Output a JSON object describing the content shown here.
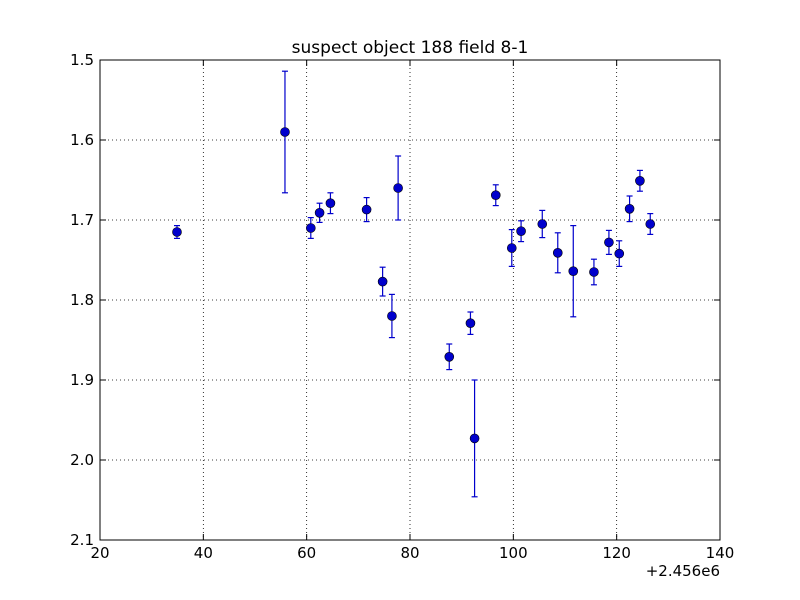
{
  "chart_data": {
    "type": "scatter",
    "title": "suspect object 188 field 8-1",
    "xlabel": "",
    "ylabel": "",
    "xlim": [
      20,
      140
    ],
    "ylim": [
      2.1,
      1.5
    ],
    "y_inverted": true,
    "x_offset_label": "+2.456e6",
    "x_ticks": [
      20,
      40,
      60,
      80,
      100,
      120,
      140
    ],
    "x_tick_labels": [
      "20",
      "40",
      "60",
      "80",
      "100",
      "120",
      "140"
    ],
    "y_ticks": [
      1.5,
      1.6,
      1.7,
      1.8,
      1.9,
      2.0,
      2.1
    ],
    "y_tick_labels": [
      "1.5",
      "1.6",
      "1.7",
      "1.8",
      "1.9",
      "2.0",
      "2.1"
    ],
    "grid": true,
    "marker_color": "#0000cc",
    "errorbar_color": "#0000cc",
    "points": [
      {
        "x": 34.9,
        "y": 1.715,
        "yerr": 0.008
      },
      {
        "x": 55.8,
        "y": 1.59,
        "yerr": 0.076
      },
      {
        "x": 60.8,
        "y": 1.71,
        "yerr": 0.013
      },
      {
        "x": 62.5,
        "y": 1.691,
        "yerr": 0.012
      },
      {
        "x": 64.6,
        "y": 1.679,
        "yerr": 0.013
      },
      {
        "x": 71.6,
        "y": 1.687,
        "yerr": 0.015
      },
      {
        "x": 74.7,
        "y": 1.777,
        "yerr": 0.018
      },
      {
        "x": 76.5,
        "y": 1.82,
        "yerr": 0.027
      },
      {
        "x": 77.7,
        "y": 1.66,
        "yerr": 0.04
      },
      {
        "x": 87.6,
        "y": 1.871,
        "yerr": 0.016
      },
      {
        "x": 91.7,
        "y": 1.829,
        "yerr": 0.014
      },
      {
        "x": 92.5,
        "y": 1.973,
        "yerr": 0.073
      },
      {
        "x": 96.6,
        "y": 1.669,
        "yerr": 0.013
      },
      {
        "x": 99.7,
        "y": 1.735,
        "yerr": 0.023
      },
      {
        "x": 101.5,
        "y": 1.714,
        "yerr": 0.013
      },
      {
        "x": 105.6,
        "y": 1.705,
        "yerr": 0.017
      },
      {
        "x": 108.6,
        "y": 1.741,
        "yerr": 0.025
      },
      {
        "x": 111.6,
        "y": 1.764,
        "yerr": 0.057
      },
      {
        "x": 115.6,
        "y": 1.765,
        "yerr": 0.016
      },
      {
        "x": 118.5,
        "y": 1.728,
        "yerr": 0.015
      },
      {
        "x": 120.5,
        "y": 1.742,
        "yerr": 0.016
      },
      {
        "x": 122.5,
        "y": 1.686,
        "yerr": 0.016
      },
      {
        "x": 124.5,
        "y": 1.651,
        "yerr": 0.013
      },
      {
        "x": 126.5,
        "y": 1.705,
        "yerr": 0.013
      }
    ]
  }
}
